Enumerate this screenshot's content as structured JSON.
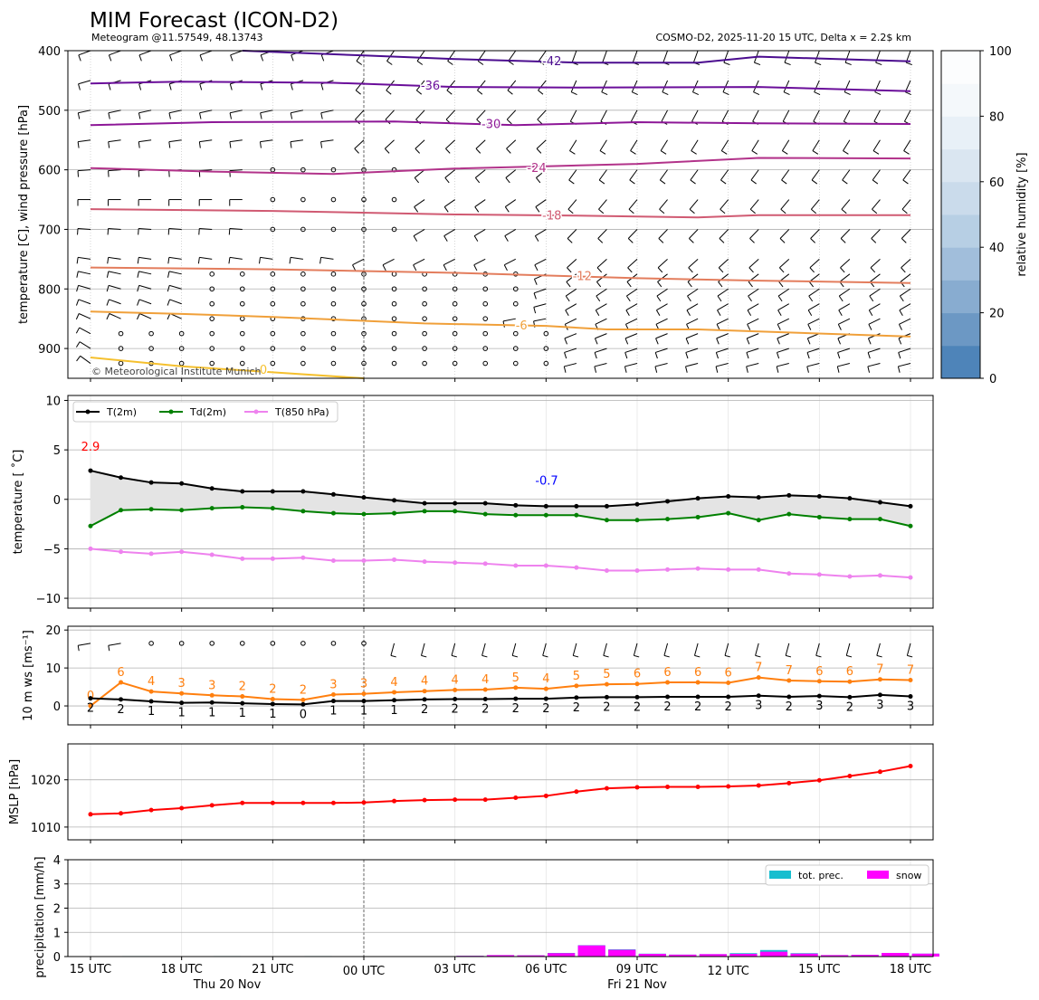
{
  "header": {
    "title": "MIM Forecast (ICON-D2)",
    "subtitle_left": "Meteogram @11.57549, 48.13743",
    "subtitle_right": "COSMO-D2, 2025-11-20 15 UTC, Delta x = 2.2$ km",
    "copyright": "© Meteorological Institute Munich"
  },
  "colors": {
    "t2m": "#000000",
    "td2m": "#008000",
    "t850": "#ee82ee",
    "speed": "#ff7f0e",
    "mslp": "#ff0000",
    "prec": "#17becf",
    "snow": "#ff00ff",
    "rh_scale": [
      "#4e84b9",
      "#6c98c4",
      "#88acd0",
      "#a1bedb",
      "#b7cfe4",
      "#cadbeb",
      "#dae6f1",
      "#e8f0f7",
      "#f4f8fb",
      "#fcfdfe"
    ]
  },
  "x_axis": {
    "ticks": [
      "15 UTC",
      "18 UTC",
      "21 UTC",
      "00 UTC",
      "03 UTC",
      "06 UTC",
      "09 UTC",
      "12 UTC",
      "15 UTC",
      "18 UTC"
    ],
    "day_labels": [
      "Thu 20 Nov",
      "Fri 21 Nov"
    ]
  },
  "chart_data": [
    {
      "type": "contour",
      "panel": "upper-air",
      "ylabel": "temperature [C], wind pressure [hPa]",
      "ylim": [
        950,
        400
      ],
      "yticks": [
        400,
        500,
        600,
        700,
        800,
        900
      ],
      "x_hours": [
        0,
        27
      ],
      "isotherms": [
        {
          "label": "-42",
          "color": "#4b0d8f",
          "x": [
            5,
            9,
            12,
            16,
            20,
            22,
            27
          ],
          "p": [
            400,
            408,
            414,
            420,
            420,
            410,
            418
          ]
        },
        {
          "label": "-36",
          "color": "#6a0e9a",
          "x": [
            0,
            3,
            8,
            12,
            16,
            22,
            27
          ],
          "p": [
            455,
            452,
            454,
            461,
            462,
            461,
            468
          ]
        },
        {
          "label": "-30",
          "color": "#8d1797",
          "x": [
            0,
            4,
            10,
            14,
            18,
            22,
            27
          ],
          "p": [
            525,
            520,
            519,
            525,
            520,
            522,
            523
          ]
        },
        {
          "label": "-24",
          "color": "#b2338a",
          "x": [
            0,
            4,
            8,
            12,
            15,
            18,
            22,
            27
          ],
          "p": [
            597,
            603,
            607,
            598,
            594,
            590,
            580,
            581
          ]
        },
        {
          "label": "-18",
          "color": "#d05a72",
          "x": [
            0,
            6,
            12,
            16,
            20,
            22,
            27
          ],
          "p": [
            666,
            669,
            675,
            677,
            680,
            676,
            676
          ]
        },
        {
          "label": "-12",
          "color": "#e37d5d",
          "x": [
            0,
            6,
            12,
            18,
            22,
            27
          ],
          "p": [
            764,
            767,
            773,
            782,
            786,
            790
          ]
        },
        {
          "label": "-6",
          "color": "#f0a03a",
          "x": [
            0,
            3,
            6,
            11,
            15,
            17,
            20,
            27
          ],
          "p": [
            838,
            842,
            847,
            858,
            862,
            868,
            868,
            880
          ]
        },
        {
          "label": "0",
          "color": "#f5c02e",
          "x": [
            0,
            3,
            6,
            9
          ],
          "p": [
            915,
            930,
            940,
            950
          ]
        }
      ],
      "colorbar": {
        "label": "relative humidity [%]",
        "ticks": [
          0,
          20,
          40,
          60,
          80,
          100
        ]
      }
    },
    {
      "type": "line",
      "panel": "temperature",
      "ylabel": "temperature [ $^\\circ$C]",
      "ylabel_display": "temperature [ ˚C]",
      "ylim": [
        -11,
        10.5
      ],
      "yticks": [
        -10,
        -5,
        0,
        5,
        10
      ],
      "grid": true,
      "legend": "top-left",
      "annotations": [
        {
          "text": "2.9",
          "color": "#ff0000"
        },
        {
          "text": "-0.7",
          "color": "#0000ff"
        }
      ],
      "series": [
        {
          "name": "T(2m)",
          "values": [
            2.9,
            2.2,
            1.7,
            1.6,
            1.1,
            0.8,
            0.8,
            0.8,
            0.5,
            0.2,
            -0.1,
            -0.4,
            -0.4,
            -0.4,
            -0.6,
            -0.7,
            -0.7,
            -0.7,
            -0.5,
            -0.2,
            0.1,
            0.3,
            0.2,
            0.4,
            0.3,
            0.1,
            -0.3,
            -0.7
          ]
        },
        {
          "name": "Td(2m)",
          "values": [
            -2.7,
            -1.1,
            -1.0,
            -1.1,
            -0.9,
            -0.8,
            -0.9,
            -1.2,
            -1.4,
            -1.5,
            -1.4,
            -1.2,
            -1.2,
            -1.5,
            -1.6,
            -1.6,
            -1.6,
            -2.1,
            -2.1,
            -2.0,
            -1.8,
            -1.4,
            -2.1,
            -1.5,
            -1.8,
            -2.0,
            -2.0,
            -2.7
          ]
        },
        {
          "name": "T(850 hPa)",
          "values": [
            -5.0,
            -5.3,
            -5.5,
            -5.3,
            -5.6,
            -6.0,
            -6.0,
            -5.9,
            -6.2,
            -6.2,
            -6.1,
            -6.3,
            -6.4,
            -6.5,
            -6.7,
            -6.7,
            -6.9,
            -7.2,
            -7.2,
            -7.1,
            -7.0,
            -7.1,
            -7.1,
            -7.5,
            -7.6,
            -7.8,
            -7.7,
            -7.9
          ]
        }
      ]
    },
    {
      "type": "line",
      "panel": "wind",
      "ylabel": "10 m ws [ms$^{-1}$]",
      "ylabel_display": "10 m ws [ms⁻¹]",
      "ylim": [
        -5,
        21
      ],
      "yticks": [
        0,
        10,
        20
      ],
      "grid": true,
      "series": [
        {
          "name": "gusts",
          "values": [
            0,
            6,
            4,
            3,
            3,
            2,
            2,
            2,
            3,
            3,
            4,
            4,
            4,
            4,
            5,
            4,
            5,
            5,
            6,
            6,
            6,
            6,
            7,
            7,
            6,
            6,
            7,
            7
          ],
          "plot": [
            0.0,
            6.2,
            3.8,
            3.3,
            2.8,
            2.5,
            1.8,
            1.6,
            3.0,
            3.2,
            3.6,
            3.9,
            4.2,
            4.3,
            4.8,
            4.5,
            5.3,
            5.7,
            5.8,
            6.2,
            6.2,
            6.1,
            7.5,
            6.7,
            6.5,
            6.4,
            7.0,
            6.8
          ]
        },
        {
          "name": "speed",
          "values": [
            2,
            2,
            1,
            1,
            1,
            1,
            1,
            0,
            1,
            1,
            1,
            2,
            2,
            2,
            2,
            2,
            2,
            2,
            2,
            2,
            2,
            2,
            3,
            2,
            3,
            2,
            3,
            3
          ],
          "plot": [
            2.0,
            1.7,
            1.2,
            0.8,
            0.9,
            0.7,
            0.5,
            0.4,
            1.3,
            1.3,
            1.5,
            1.7,
            1.8,
            1.8,
            1.9,
            1.9,
            2.2,
            2.3,
            2.3,
            2.4,
            2.4,
            2.4,
            2.7,
            2.4,
            2.6,
            2.3,
            2.9,
            2.5
          ]
        }
      ]
    },
    {
      "type": "line",
      "panel": "mslp",
      "ylabel": "MSLP [hPa]",
      "ylim": [
        1007.3,
        1027.6
      ],
      "yticks": [
        1010,
        1020
      ],
      "grid": true,
      "series": [
        {
          "name": "MSLP",
          "values": [
            1012.7,
            1012.9,
            1013.6,
            1014.0,
            1014.6,
            1015.1,
            1015.1,
            1015.1,
            1015.1,
            1015.2,
            1015.5,
            1015.7,
            1015.8,
            1015.8,
            1016.2,
            1016.6,
            1017.5,
            1018.2,
            1018.4,
            1018.5,
            1018.5,
            1018.6,
            1018.8,
            1019.3,
            1019.9,
            1020.8,
            1021.7,
            1022.9
          ]
        }
      ]
    },
    {
      "type": "bar",
      "panel": "precipitation",
      "ylabel": "precipitation [mm/h]",
      "ylim": [
        0,
        4
      ],
      "yticks": [
        0,
        1,
        2,
        3,
        4
      ],
      "grid": true,
      "legend": "top-right",
      "series": [
        {
          "name": "tot. prec.",
          "values": [
            0,
            0.02,
            0,
            0,
            0.02,
            0,
            0,
            0.02,
            0,
            0,
            0,
            0,
            0.03,
            0.06,
            0.05,
            0.15,
            0.47,
            0.3,
            0.12,
            0.08,
            0.1,
            0.14,
            0.27,
            0.14,
            0.06,
            0.07,
            0.15,
            0.12
          ]
        },
        {
          "name": "snow",
          "values": [
            0,
            0,
            0,
            0,
            0,
            0,
            0,
            0,
            0,
            0,
            0,
            0,
            0.03,
            0.06,
            0.05,
            0.14,
            0.46,
            0.28,
            0.11,
            0.08,
            0.1,
            0.11,
            0.2,
            0.12,
            0.06,
            0.07,
            0.15,
            0.12
          ]
        }
      ]
    }
  ]
}
